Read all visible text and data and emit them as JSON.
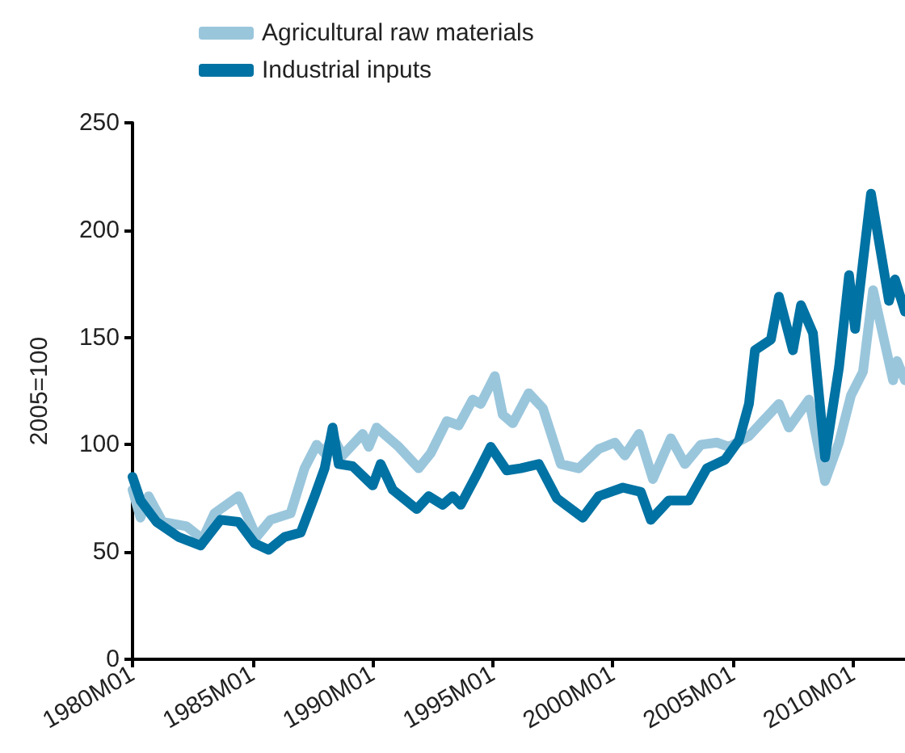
{
  "chart_data": {
    "type": "line",
    "ylabel": "2005=100",
    "legend": "top",
    "grid": false,
    "marker": "none",
    "line_style": "solid",
    "xlim": [
      "1980-01",
      "2012-03"
    ],
    "ylim": [
      0,
      250
    ],
    "xticks": [
      {
        "value": "1980-01",
        "label": "1980M01"
      },
      {
        "value": "1985-01",
        "label": "1985M01"
      },
      {
        "value": "1990-01",
        "label": "1990M01"
      },
      {
        "value": "1995-01",
        "label": "1995M01"
      },
      {
        "value": "2000-01",
        "label": "2000M01"
      },
      {
        "value": "2005-01",
        "label": "2005M01"
      },
      {
        "value": "2010-01",
        "label": "2010M01"
      }
    ],
    "yticks": [
      0,
      50,
      100,
      150,
      200,
      250
    ],
    "series": [
      {
        "name": "Agricultural raw materials",
        "color": "#9ac6dc",
        "x": [
          "1980-01",
          "1980-05",
          "1980-09",
          "1981-04",
          "1982-04",
          "1982-12",
          "1983-06",
          "1984-06",
          "1985-03",
          "1985-10",
          "1986-08",
          "1987-03",
          "1987-09",
          "1988-01",
          "1988-05",
          "1988-10",
          "1989-08",
          "1989-11",
          "1990-03",
          "1991-02",
          "1991-12",
          "1992-06",
          "1993-02",
          "1993-08",
          "1994-03",
          "1994-07",
          "1995-02",
          "1995-06",
          "1995-11",
          "1996-07",
          "1997-02",
          "1997-11",
          "1998-08",
          "1999-06",
          "2000-02",
          "2000-07",
          "2001-02",
          "2001-09",
          "2002-06",
          "2003-01",
          "2003-09",
          "2004-05",
          "2004-11",
          "2005-09",
          "2006-04",
          "2006-12",
          "2007-05",
          "2008-03",
          "2008-11",
          "2009-06",
          "2009-12",
          "2010-06",
          "2010-11",
          "2011-09",
          "2011-11",
          "2012-03"
        ],
        "values": [
          79,
          66,
          76,
          64,
          62,
          56,
          68,
          76,
          57,
          65,
          68,
          89,
          100,
          96,
          104,
          95,
          105,
          99,
          108,
          99,
          89,
          96,
          111,
          109,
          121,
          119,
          132,
          114,
          110,
          124,
          117,
          91,
          89,
          98,
          101,
          95,
          105,
          84,
          103,
          91,
          100,
          101,
          99,
          104,
          111,
          119,
          108,
          121,
          83,
          101,
          123,
          134,
          172,
          130,
          139,
          130
        ]
      },
      {
        "name": "Industrial inputs",
        "color": "#0072a3",
        "x": [
          "1980-01",
          "1980-05",
          "1981-01",
          "1981-12",
          "1982-11",
          "1983-09",
          "1984-06",
          "1985-02",
          "1985-09",
          "1986-05",
          "1987-01",
          "1987-08",
          "1988-01",
          "1988-05",
          "1988-08",
          "1989-03",
          "1990-01",
          "1990-05",
          "1990-11",
          "1991-11",
          "1992-05",
          "1992-12",
          "1993-05",
          "1993-09",
          "1994-05",
          "1994-12",
          "1995-08",
          "1996-03",
          "1996-12",
          "1997-09",
          "1998-10",
          "1999-06",
          "2000-06",
          "2001-03",
          "2001-08",
          "2002-05",
          "2003-03",
          "2003-12",
          "2004-09",
          "2005-04",
          "2005-09",
          "2005-12",
          "2006-08",
          "2006-12",
          "2007-07",
          "2007-11",
          "2008-05",
          "2008-11",
          "2009-06",
          "2009-11",
          "2010-02",
          "2010-10",
          "2011-07",
          "2011-10",
          "2012-03"
        ],
        "values": [
          85,
          74,
          64,
          57,
          53,
          65,
          64,
          54,
          51,
          57,
          59,
          76,
          89,
          108,
          91,
          90,
          81,
          91,
          79,
          70,
          76,
          72,
          76,
          72,
          86,
          99,
          88,
          89,
          91,
          75,
          66,
          76,
          80,
          78,
          65,
          74,
          74,
          89,
          93,
          102,
          119,
          144,
          149,
          169,
          144,
          165,
          152,
          94,
          136,
          179,
          154,
          217,
          167,
          177,
          162
        ]
      }
    ]
  }
}
